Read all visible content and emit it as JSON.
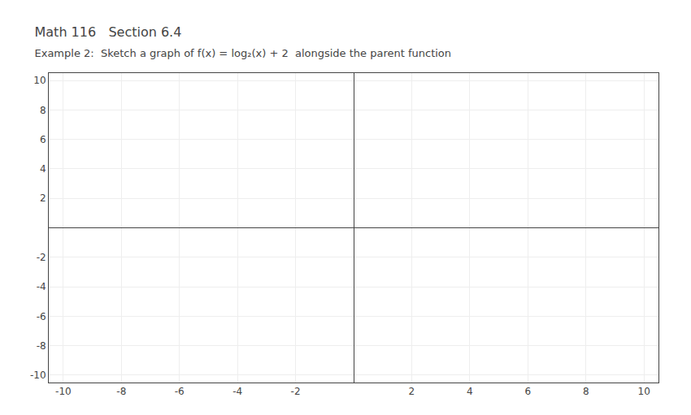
{
  "chart_data": {
    "type": "line",
    "title": "Math 116   Section 6.4",
    "subtitle": "Example 2:  Sketch a graph of f(x) = log₂(x) + 2  alongside the parent function",
    "xlim": [
      -10.5,
      10.5
    ],
    "ylim": [
      -10.5,
      10.5
    ],
    "xticks": [
      -10,
      -8,
      -6,
      -4,
      -2,
      2,
      4,
      6,
      8,
      10
    ],
    "yticks": [
      -10,
      -8,
      -6,
      -4,
      -2,
      2,
      4,
      6,
      8,
      10
    ],
    "grid": true
  }
}
